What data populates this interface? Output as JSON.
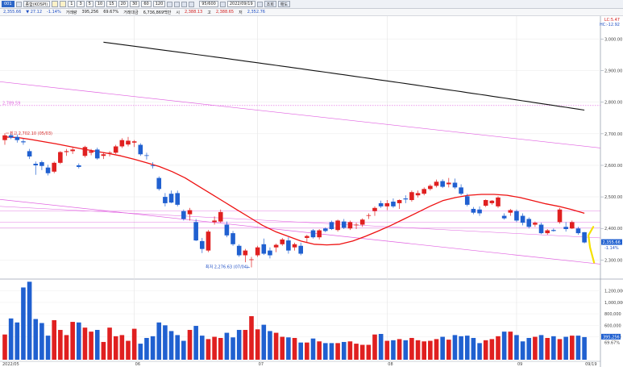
{
  "toolbar": {
    "symbol_code": "001",
    "symbol_name": "종합(KOSPI)",
    "timeframes": [
      "1",
      "3",
      "5",
      "10",
      "15",
      "20",
      "30",
      "60",
      "120"
    ],
    "count": "95/600",
    "date": "2022/09/19",
    "buttons": [
      "조회",
      "매도"
    ]
  },
  "quote": {
    "price": "2,355.66",
    "change": "▼ 27.12",
    "change_pct": "-1.14%",
    "volume_label": "거래량",
    "volume": "395,256",
    "volume_ratio": "69.67%",
    "amount_label": "거래대금",
    "amount": "6,736,869백만",
    "open_label": "시",
    "open": "2,388.13",
    "high_label": "고",
    "high": "2,388.65",
    "low_label": "저",
    "low": "2,352.76"
  },
  "corner": {
    "lc": "LC:5.47",
    "hc": "HC:-12.92"
  },
  "colors": {
    "up": "#e02020",
    "down": "#2060d0",
    "ma20": "#ee1111",
    "ma240": "#111111",
    "channel": "#e060e0",
    "volume_up": "#e02020",
    "volume_down": "#2060d0",
    "marker": "#f5e000"
  },
  "chart_data": [
    {
      "type": "candlestick",
      "title": "",
      "x_tick_labels": [
        "2022/05",
        "06",
        "07",
        "08",
        "09",
        "09/19"
      ],
      "y_ticks": [
        2300,
        2400,
        2500,
        2600,
        2700,
        2800,
        2900,
        3000
      ],
      "y_tick_labels": [
        "2,300.00",
        "2,400.00",
        "2,500.00",
        "2,600.00",
        "2,700.00",
        "2,800.00",
        "2,900.00",
        "3,000.00"
      ],
      "ylim": [
        2260,
        3060
      ],
      "last_price_label": "2,355.66",
      "last_change_label": "-1.14%",
      "annotations": [
        {
          "text": "최고 2,702.10 (05/03)",
          "x_index": 0,
          "y": 2702.1
        },
        {
          "text": "최저 2,276.63 (07/04)",
          "x_index": 40,
          "y": 2276.63
        },
        {
          "text": "2,789.59",
          "y": 2789.59
        }
      ],
      "ohlc": [
        {
          "o": 2680,
          "h": 2702,
          "l": 2665,
          "c": 2695
        },
        {
          "o": 2695,
          "h": 2702,
          "l": 2683,
          "c": 2688
        },
        {
          "o": 2690,
          "h": 2698,
          "l": 2672,
          "c": 2680
        },
        {
          "o": 2676,
          "h": 2684,
          "l": 2665,
          "c": 2673
        },
        {
          "o": 2645,
          "h": 2652,
          "l": 2620,
          "c": 2628
        },
        {
          "o": 2605,
          "h": 2612,
          "l": 2570,
          "c": 2600
        },
        {
          "o": 2610,
          "h": 2615,
          "l": 2585,
          "c": 2598
        },
        {
          "o": 2593,
          "h": 2602,
          "l": 2568,
          "c": 2575
        },
        {
          "o": 2580,
          "h": 2612,
          "l": 2575,
          "c": 2608
        },
        {
          "o": 2608,
          "h": 2645,
          "l": 2604,
          "c": 2642
        },
        {
          "o": 2642,
          "h": 2652,
          "l": 2630,
          "c": 2645
        },
        {
          "o": 2645,
          "h": 2656,
          "l": 2636,
          "c": 2650
        },
        {
          "o": 2600,
          "h": 2606,
          "l": 2590,
          "c": 2595
        },
        {
          "o": 2630,
          "h": 2662,
          "l": 2625,
          "c": 2658
        },
        {
          "o": 2640,
          "h": 2652,
          "l": 2632,
          "c": 2645
        },
        {
          "o": 2650,
          "h": 2656,
          "l": 2618,
          "c": 2622
        },
        {
          "o": 2630,
          "h": 2640,
          "l": 2620,
          "c": 2635
        },
        {
          "o": 2638,
          "h": 2645,
          "l": 2628,
          "c": 2640
        },
        {
          "o": 2640,
          "h": 2665,
          "l": 2636,
          "c": 2660
        },
        {
          "o": 2660,
          "h": 2686,
          "l": 2655,
          "c": 2680
        },
        {
          "o": 2666,
          "h": 2690,
          "l": 2660,
          "c": 2678
        },
        {
          "o": 2672,
          "h": 2680,
          "l": 2658,
          "c": 2676
        },
        {
          "o": 2665,
          "h": 2670,
          "l": 2630,
          "c": 2635
        },
        {
          "o": 2632,
          "h": 2640,
          "l": 2618,
          "c": 2630
        },
        {
          "o": 2600,
          "h": 2610,
          "l": 2590,
          "c": 2598
        },
        {
          "o": 2560,
          "h": 2565,
          "l": 2520,
          "c": 2525
        },
        {
          "o": 2500,
          "h": 2512,
          "l": 2470,
          "c": 2480
        },
        {
          "o": 2510,
          "h": 2520,
          "l": 2480,
          "c": 2482
        },
        {
          "o": 2512,
          "h": 2520,
          "l": 2470,
          "c": 2475
        },
        {
          "o": 2455,
          "h": 2460,
          "l": 2425,
          "c": 2430
        },
        {
          "o": 2445,
          "h": 2465,
          "l": 2425,
          "c": 2458
        },
        {
          "o": 2420,
          "h": 2430,
          "l": 2360,
          "c": 2362
        },
        {
          "o": 2360,
          "h": 2370,
          "l": 2322,
          "c": 2335
        },
        {
          "o": 2330,
          "h": 2395,
          "l": 2325,
          "c": 2390
        },
        {
          "o": 2420,
          "h": 2438,
          "l": 2412,
          "c": 2425
        },
        {
          "o": 2422,
          "h": 2460,
          "l": 2418,
          "c": 2452
        },
        {
          "o": 2412,
          "h": 2422,
          "l": 2372,
          "c": 2378
        },
        {
          "o": 2385,
          "h": 2392,
          "l": 2345,
          "c": 2350
        },
        {
          "o": 2345,
          "h": 2350,
          "l": 2310,
          "c": 2315
        },
        {
          "o": 2315,
          "h": 2335,
          "l": 2293,
          "c": 2330
        },
        {
          "o": 2300,
          "h": 2310,
          "l": 2276.63,
          "c": 2302
        },
        {
          "o": 2315,
          "h": 2345,
          "l": 2310,
          "c": 2340
        },
        {
          "o": 2350,
          "h": 2368,
          "l": 2316,
          "c": 2320
        },
        {
          "o": 2330,
          "h": 2340,
          "l": 2305,
          "c": 2315
        },
        {
          "o": 2340,
          "h": 2352,
          "l": 2325,
          "c": 2348
        },
        {
          "o": 2350,
          "h": 2370,
          "l": 2345,
          "c": 2365
        },
        {
          "o": 2362,
          "h": 2372,
          "l": 2320,
          "c": 2330
        },
        {
          "o": 2340,
          "h": 2355,
          "l": 2330,
          "c": 2350
        },
        {
          "o": 2345,
          "h": 2355,
          "l": 2315,
          "c": 2320
        },
        {
          "o": 2370,
          "h": 2380,
          "l": 2355,
          "c": 2376
        },
        {
          "o": 2394,
          "h": 2398,
          "l": 2368,
          "c": 2372
        },
        {
          "o": 2372,
          "h": 2398,
          "l": 2365,
          "c": 2394
        },
        {
          "o": 2400,
          "h": 2403,
          "l": 2388,
          "c": 2392
        },
        {
          "o": 2420,
          "h": 2425,
          "l": 2395,
          "c": 2398
        },
        {
          "o": 2395,
          "h": 2428,
          "l": 2390,
          "c": 2425
        },
        {
          "o": 2422,
          "h": 2430,
          "l": 2398,
          "c": 2402
        },
        {
          "o": 2400,
          "h": 2425,
          "l": 2395,
          "c": 2420
        },
        {
          "o": 2410,
          "h": 2418,
          "l": 2398,
          "c": 2412
        },
        {
          "o": 2412,
          "h": 2432,
          "l": 2405,
          "c": 2428
        },
        {
          "o": 2440,
          "h": 2448,
          "l": 2430,
          "c": 2442
        },
        {
          "o": 2455,
          "h": 2470,
          "l": 2440,
          "c": 2465
        },
        {
          "o": 2480,
          "h": 2488,
          "l": 2465,
          "c": 2470
        },
        {
          "o": 2470,
          "h": 2490,
          "l": 2458,
          "c": 2480
        },
        {
          "o": 2485,
          "h": 2495,
          "l": 2465,
          "c": 2470
        },
        {
          "o": 2480,
          "h": 2492,
          "l": 2462,
          "c": 2490
        },
        {
          "o": 2495,
          "h": 2505,
          "l": 2480,
          "c": 2492
        },
        {
          "o": 2490,
          "h": 2520,
          "l": 2485,
          "c": 2515
        },
        {
          "o": 2505,
          "h": 2520,
          "l": 2498,
          "c": 2512
        },
        {
          "o": 2510,
          "h": 2530,
          "l": 2505,
          "c": 2525
        },
        {
          "o": 2525,
          "h": 2540,
          "l": 2520,
          "c": 2535
        },
        {
          "o": 2535,
          "h": 2555,
          "l": 2530,
          "c": 2548
        },
        {
          "o": 2550,
          "h": 2556,
          "l": 2528,
          "c": 2532
        },
        {
          "o": 2540,
          "h": 2560,
          "l": 2530,
          "c": 2545
        },
        {
          "o": 2545,
          "h": 2558,
          "l": 2525,
          "c": 2530
        },
        {
          "o": 2530,
          "h": 2540,
          "l": 2505,
          "c": 2510
        },
        {
          "o": 2502,
          "h": 2510,
          "l": 2470,
          "c": 2475
        },
        {
          "o": 2462,
          "h": 2468,
          "l": 2445,
          "c": 2450
        },
        {
          "o": 2460,
          "h": 2470,
          "l": 2440,
          "c": 2448
        },
        {
          "o": 2472,
          "h": 2492,
          "l": 2468,
          "c": 2490
        },
        {
          "o": 2480,
          "h": 2490,
          "l": 2475,
          "c": 2488
        },
        {
          "o": 2470,
          "h": 2502,
          "l": 2465,
          "c": 2498
        },
        {
          "o": 2440,
          "h": 2448,
          "l": 2428,
          "c": 2432
        },
        {
          "o": 2450,
          "h": 2462,
          "l": 2440,
          "c": 2458
        },
        {
          "o": 2455,
          "h": 2460,
          "l": 2420,
          "c": 2425
        },
        {
          "o": 2440,
          "h": 2448,
          "l": 2410,
          "c": 2418
        },
        {
          "o": 2430,
          "h": 2435,
          "l": 2400,
          "c": 2405
        },
        {
          "o": 2412,
          "h": 2422,
          "l": 2405,
          "c": 2418
        },
        {
          "o": 2412,
          "h": 2418,
          "l": 2382,
          "c": 2385
        },
        {
          "o": 2385,
          "h": 2398,
          "l": 2380,
          "c": 2394
        },
        {
          "o": 2395,
          "h": 2400,
          "l": 2390,
          "c": 2392
        },
        {
          "o": 2420,
          "h": 2465,
          "l": 2415,
          "c": 2460
        },
        {
          "o": 2405,
          "h": 2420,
          "l": 2390,
          "c": 2398
        },
        {
          "o": 2400,
          "h": 2425,
          "l": 2398,
          "c": 2420
        },
        {
          "o": 2400,
          "h": 2405,
          "l": 2380,
          "c": 2385
        },
        {
          "o": 2388.13,
          "h": 2388.65,
          "l": 2352.76,
          "c": 2355.66
        }
      ],
      "ma20_sample": [
        2690,
        2688,
        2682,
        2675,
        2668,
        2660,
        2652,
        2645,
        2638,
        2630,
        2620,
        2608,
        2596,
        2580,
        2560,
        2535,
        2510,
        2485,
        2460,
        2435,
        2410,
        2390,
        2375,
        2360,
        2350,
        2348,
        2350,
        2360,
        2375,
        2392,
        2410,
        2430,
        2450,
        2470,
        2488,
        2498,
        2505,
        2508,
        2508,
        2505,
        2498,
        2488,
        2478,
        2470,
        2460,
        2448
      ],
      "lines": [
        "20-day moving average",
        "240-day moving average",
        "channel lines"
      ],
      "volume": {
        "y_ticks": [
          400000,
          600000,
          800000,
          1000000,
          1200000
        ],
        "y_tick_labels": [
          "400,000",
          "600,000",
          "800,000",
          "1,000,000",
          "1,200,000"
        ],
        "ylim": [
          0,
          1350000
        ],
        "last_label": "395,256",
        "ratio_label": "69.67%",
        "values": [
          440000,
          720000,
          650000,
          1260000,
          1360000,
          710000,
          640000,
          420000,
          690000,
          520000,
          430000,
          660000,
          650000,
          560000,
          490000,
          520000,
          310000,
          560000,
          410000,
          430000,
          330000,
          540000,
          280000,
          380000,
          410000,
          650000,
          600000,
          500000,
          430000,
          330000,
          520000,
          590000,
          420000,
          360000,
          400000,
          380000,
          470000,
          390000,
          520000,
          520000,
          760000,
          530000,
          610000,
          500000,
          470000,
          400000,
          390000,
          380000,
          300000,
          300000,
          370000,
          320000,
          290000,
          290000,
          290000,
          310000,
          320000,
          280000,
          260000,
          260000,
          440000,
          450000,
          330000,
          340000,
          360000,
          340000,
          380000,
          340000,
          320000,
          330000,
          360000,
          400000,
          350000,
          430000,
          410000,
          420000,
          380000,
          290000,
          340000,
          360000,
          410000,
          490000,
          490000,
          430000,
          320000,
          380000,
          400000,
          430000,
          380000,
          410000,
          360000,
          400000,
          420000,
          420000,
          395256
        ]
      }
    }
  ]
}
